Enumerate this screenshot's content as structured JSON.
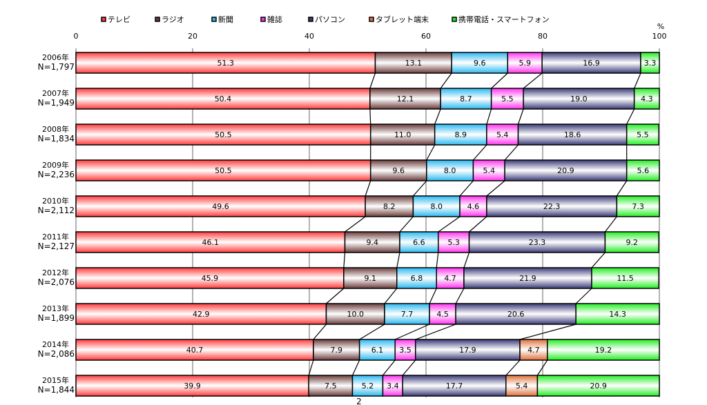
{
  "chart_data": {
    "type": "bar",
    "orientation": "horizontal",
    "stacked": true,
    "unit_label": "%",
    "xlim": [
      0,
      100
    ],
    "xticks": [
      0,
      20,
      40,
      60,
      80,
      100
    ],
    "grid": true,
    "legend_position": "top",
    "categories": [
      {
        "year": "2006年",
        "n": "N=1,797"
      },
      {
        "year": "2007年",
        "n": "N=1,949"
      },
      {
        "year": "2008年",
        "n": "N=1,834"
      },
      {
        "year": "2009年",
        "n": "N=2,236"
      },
      {
        "year": "2010年",
        "n": "N=2,112"
      },
      {
        "year": "2011年",
        "n": "N=2,127"
      },
      {
        "year": "2012年",
        "n": "N=2,076"
      },
      {
        "year": "2013年",
        "n": "N=1,899"
      },
      {
        "year": "2014年",
        "n": "N=2,086"
      },
      {
        "year": "2015年",
        "n": "N=1,844"
      }
    ],
    "series": [
      {
        "name": "テレビ",
        "color": "#ff3b3b",
        "values": [
          51.3,
          50.4,
          50.5,
          50.5,
          49.6,
          46.1,
          45.9,
          42.9,
          40.7,
          39.9
        ]
      },
      {
        "name": "ラジオ",
        "color": "#6b3b3b",
        "values": [
          13.1,
          12.1,
          11.0,
          9.6,
          8.2,
          9.4,
          9.1,
          10.0,
          7.9,
          7.5
        ]
      },
      {
        "name": "新聞",
        "color": "#2ab8f0",
        "values": [
          9.6,
          8.7,
          8.9,
          8.0,
          8.0,
          6.6,
          6.8,
          7.7,
          6.1,
          5.2
        ]
      },
      {
        "name": "雑誌",
        "color": "#ff33ee",
        "values": [
          5.9,
          5.5,
          5.4,
          5.4,
          4.6,
          5.3,
          4.7,
          4.5,
          3.5,
          3.4
        ]
      },
      {
        "name": "パソコン",
        "color": "#3a3a78",
        "values": [
          16.9,
          19.0,
          18.6,
          20.9,
          22.3,
          23.3,
          21.9,
          20.6,
          17.9,
          17.7
        ]
      },
      {
        "name": "タブレット端末",
        "color": "#e0703a",
        "values": [
          null,
          null,
          null,
          null,
          null,
          null,
          null,
          null,
          4.7,
          5.4
        ]
      },
      {
        "name": "携帯電話・スマートフォン",
        "color": "#22ee22",
        "values": [
          3.3,
          4.3,
          5.5,
          5.6,
          7.3,
          9.2,
          11.5,
          14.3,
          19.2,
          20.9
        ]
      }
    ]
  },
  "page_number": "2"
}
